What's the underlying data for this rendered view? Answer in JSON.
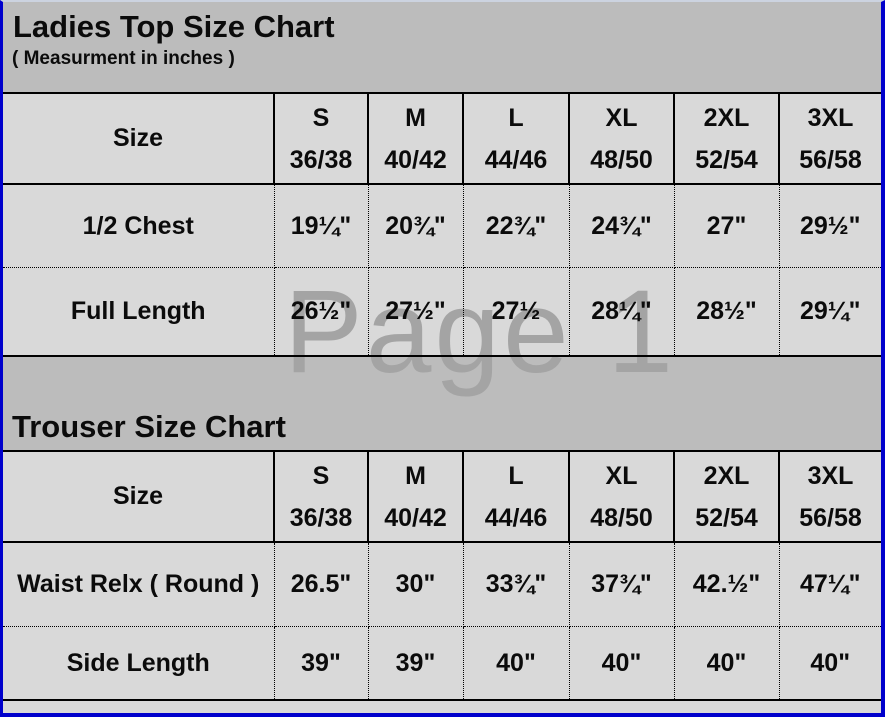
{
  "colors": {
    "page_border": "#0000cc",
    "band_bg": "#bcbcbc",
    "table_bg": "#d9d9d9",
    "watermark": "#a4a4a4",
    "text": "#000000"
  },
  "watermark": "Page 1",
  "ladies_chart": {
    "title": "Ladies Top Size Chart",
    "subtitle": "( Measurment in inches )",
    "size_label": "Size",
    "columns": [
      {
        "size": "S",
        "range": "36/38"
      },
      {
        "size": "M",
        "range": "40/42"
      },
      {
        "size": "L",
        "range": "44/46"
      },
      {
        "size": "XL",
        "range": "48/50"
      },
      {
        "size": "2XL",
        "range": "52/54"
      },
      {
        "size": "3XL",
        "range": "56/58"
      }
    ],
    "rows": [
      {
        "label": "1/2 Chest",
        "values": [
          "19¼\"",
          "20¾\"",
          "22¾\"",
          "24¾\"",
          "27\"",
          "29½\""
        ]
      },
      {
        "label": "Full Length",
        "values": [
          "26½\"",
          "27½\"",
          "27½",
          "28¼\"",
          "28½\"",
          "29¼\""
        ]
      }
    ]
  },
  "trouser_chart": {
    "title": "Trouser Size Chart",
    "size_label": "Size",
    "columns": [
      {
        "size": "S",
        "range": "36/38"
      },
      {
        "size": "M",
        "range": "40/42"
      },
      {
        "size": "L",
        "range": "44/46"
      },
      {
        "size": "XL",
        "range": "48/50"
      },
      {
        "size": "2XL",
        "range": "52/54"
      },
      {
        "size": "3XL",
        "range": "56/58"
      }
    ],
    "rows": [
      {
        "label": "Waist Relx ( Round )",
        "values": [
          "26.5\"",
          "30\"",
          "33¾\"",
          "37¾\"",
          "42.½\"",
          "47¼\""
        ]
      },
      {
        "label": "Side Length",
        "values": [
          "39\"",
          "39\"",
          "40\"",
          "40\"",
          "40\"",
          "40\""
        ]
      }
    ]
  }
}
